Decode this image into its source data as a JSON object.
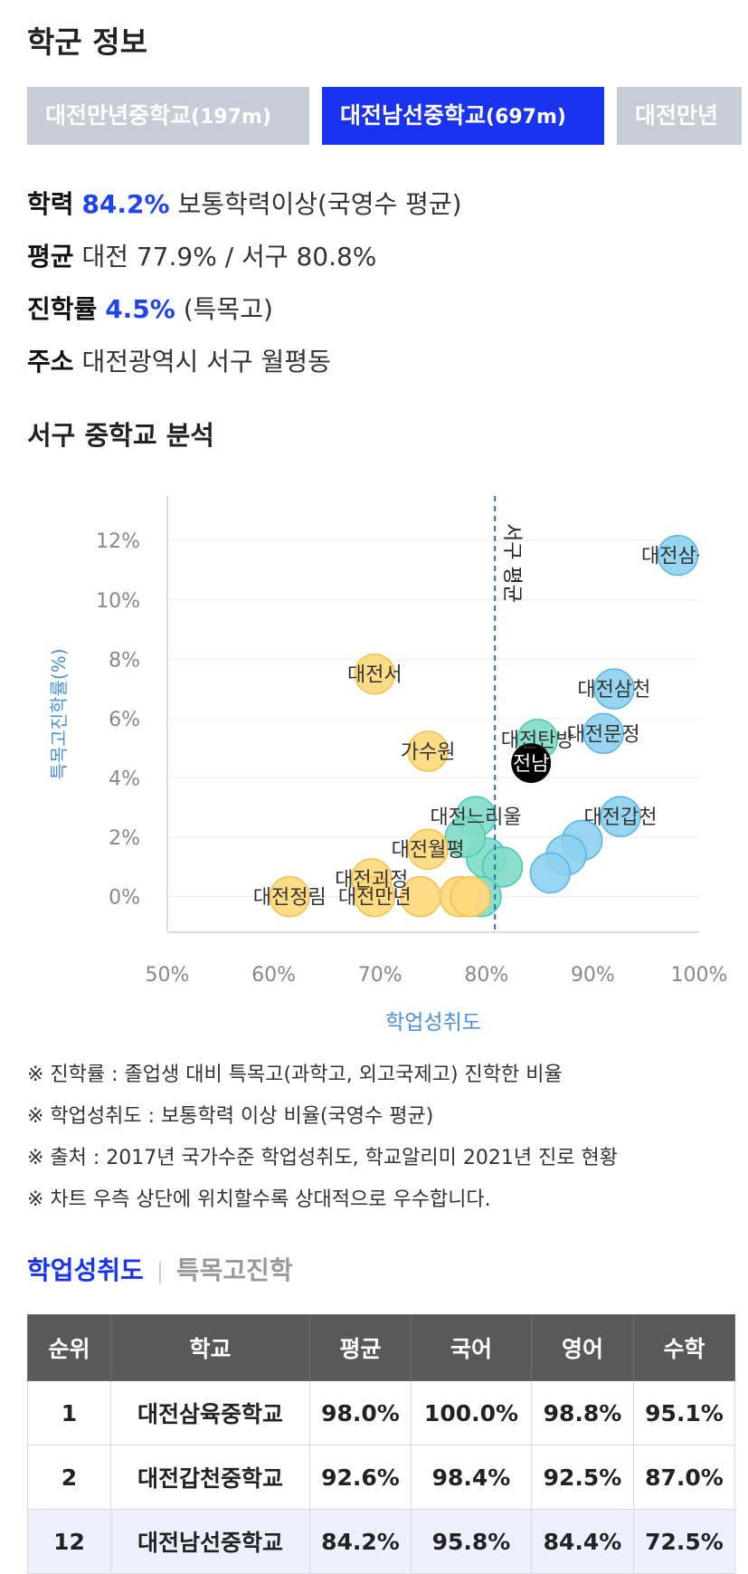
{
  "section_title": "학군 정보",
  "school_tabs": [
    {
      "name": "대전만년중학교",
      "distance": "(197m)",
      "active": false
    },
    {
      "name": "대전남선중학교",
      "distance": "(697m)",
      "active": true
    },
    {
      "name": "대전만년",
      "distance": "",
      "active": false
    }
  ],
  "info": {
    "score_label": "학력",
    "score_value": "84.2%",
    "score_desc": "보통학력이상(국영수 평균)",
    "avg_label": "평균",
    "avg_value": "대전 77.9% / 서구 80.8%",
    "rate_label": "진학률",
    "rate_value": "4.5%",
    "rate_desc": "(특목고)",
    "addr_label": "주소",
    "addr_value": "대전광역시 서구 월평동"
  },
  "analysis_title": "서구 중학교 분석",
  "chart_data": {
    "type": "scatter",
    "xlabel": "학업성취도",
    "ylabel": "특목고진학률(%)",
    "xlim": [
      50,
      100
    ],
    "ylim": [
      -1.2,
      13.5
    ],
    "xticks": [
      "50%",
      "60%",
      "70%",
      "80%",
      "90%",
      "100%"
    ],
    "yticks": [
      "0%",
      "2%",
      "4%",
      "6%",
      "8%",
      "10%",
      "12%"
    ],
    "reference_line": {
      "x": 80.8,
      "label": "서구 평균"
    },
    "colors": {
      "high": "#8dd0f0",
      "mid": "#7fdcc8",
      "low": "#ffd97a",
      "selected": "#000000"
    },
    "points": [
      {
        "label": "대전삼육",
        "x": 98.0,
        "y": 11.5,
        "group": "high"
      },
      {
        "label": "대전삼천",
        "x": 92.0,
        "y": 7.0,
        "group": "high"
      },
      {
        "label": "대전문정",
        "x": 91.0,
        "y": 5.5,
        "group": "high"
      },
      {
        "label": "대전갑천",
        "x": 92.6,
        "y": 2.7,
        "group": "high"
      },
      {
        "label": "",
        "x": 89.0,
        "y": 1.9,
        "group": "high"
      },
      {
        "label": "",
        "x": 87.5,
        "y": 1.4,
        "group": "high"
      },
      {
        "label": "",
        "x": 86.0,
        "y": 0.8,
        "group": "high"
      },
      {
        "label": "대전탄방",
        "x": 84.8,
        "y": 5.3,
        "group": "mid"
      },
      {
        "label": "대전남선",
        "x": 84.2,
        "y": 4.5,
        "group": "selected"
      },
      {
        "label": "대전느리울",
        "x": 79.0,
        "y": 2.7,
        "group": "mid"
      },
      {
        "label": "",
        "x": 80.0,
        "y": 1.3,
        "group": "mid"
      },
      {
        "label": "",
        "x": 81.5,
        "y": 1.0,
        "group": "mid"
      },
      {
        "label": "",
        "x": 79.5,
        "y": 0.0,
        "group": "mid"
      },
      {
        "label": "",
        "x": 78.0,
        "y": 2.0,
        "group": "mid"
      },
      {
        "label": "대전서",
        "x": 69.5,
        "y": 7.5,
        "group": "low"
      },
      {
        "label": "가수원",
        "x": 74.5,
        "y": 4.9,
        "group": "low"
      },
      {
        "label": "대전월평",
        "x": 74.5,
        "y": 1.6,
        "group": "low"
      },
      {
        "label": "대전괴정",
        "x": 69.2,
        "y": 0.6,
        "group": "low"
      },
      {
        "label": "대전정림",
        "x": 61.5,
        "y": 0.0,
        "group": "low"
      },
      {
        "label": "대전만년",
        "x": 69.5,
        "y": 0.0,
        "group": "low"
      },
      {
        "label": "",
        "x": 73.8,
        "y": 0.0,
        "group": "low"
      },
      {
        "label": "",
        "x": 77.5,
        "y": 0.0,
        "group": "low"
      },
      {
        "label": "",
        "x": 78.5,
        "y": 0.0,
        "group": "low"
      }
    ]
  },
  "notes": [
    "※ 진학률 : 졸업생 대비 특목고(과학고, 외고국제고) 진학한 비율",
    "※ 학업성취도 : 보통학력 이상 비율(국영수 평균)",
    "※ 출처 : 2017년 국가수준 학업성취도, 학교알리미 2021년 진로 현황",
    "※ 차트 우측 상단에 위치할수록 상대적으로 우수합니다."
  ],
  "subtabs": {
    "active": "학업성취도",
    "inactive": "특목고진학"
  },
  "table": {
    "headers": [
      "순위",
      "학교",
      "평균",
      "국어",
      "영어",
      "수학"
    ],
    "rows": [
      [
        "1",
        "대전삼육중학교",
        "98.0%",
        "100.0%",
        "98.8%",
        "95.1%"
      ],
      [
        "2",
        "대전갑천중학교",
        "92.6%",
        "98.4%",
        "92.5%",
        "87.0%"
      ],
      [
        "12",
        "대전남선중학교",
        "84.2%",
        "95.8%",
        "84.4%",
        "72.5%"
      ]
    ]
  }
}
